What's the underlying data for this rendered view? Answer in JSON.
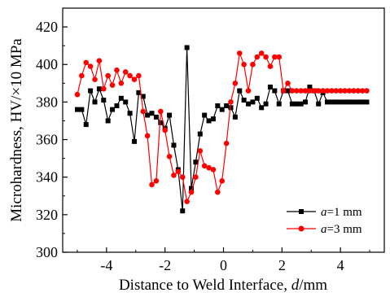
{
  "chart_data": {
    "type": "line",
    "xlabel": "Distance to Weld Interface, d/mm",
    "ylabel": "Microhardness, HV/×10 MPa",
    "xlim": [
      -5.5,
      5.5
    ],
    "ylim": [
      300,
      430
    ],
    "xticks": [
      -4,
      -2,
      0,
      2,
      4
    ],
    "yticks": [
      300,
      320,
      340,
      360,
      380,
      400,
      420
    ],
    "x_tick_labels": [
      "-4",
      "-2",
      "0",
      "2",
      "4"
    ],
    "y_tick_labels": [
      "300",
      "320",
      "340",
      "360",
      "380",
      "400",
      "420"
    ],
    "grid": false,
    "legend": "bottom-right",
    "series": [
      {
        "name": "a=1 mm",
        "name_italic": "a",
        "name_rest": "=1 mm",
        "color": "#000000",
        "marker": "square",
        "x": [
          -5.0,
          -4.85,
          -4.7,
          -4.55,
          -4.4,
          -4.25,
          -4.1,
          -3.95,
          -3.8,
          -3.65,
          -3.5,
          -3.35,
          -3.2,
          -3.05,
          -2.9,
          -2.75,
          -2.6,
          -2.45,
          -2.3,
          -2.15,
          -2.0,
          -1.85,
          -1.7,
          -1.55,
          -1.4,
          -1.25,
          -1.1,
          -0.95,
          -0.8,
          -0.65,
          -0.5,
          -0.35,
          -0.2,
          -0.05,
          0.1,
          0.25,
          0.4,
          0.55,
          0.7,
          0.85,
          1.0,
          1.15,
          1.3,
          1.45,
          1.6,
          1.75,
          1.9,
          2.05,
          2.2,
          2.35,
          2.5,
          2.65,
          2.8,
          2.95,
          3.1,
          3.25,
          3.4,
          3.55,
          3.7,
          3.85,
          4.0,
          4.15,
          4.3,
          4.45,
          4.6,
          4.75,
          4.9
        ],
        "y": [
          376,
          376,
          368,
          386,
          380,
          387,
          381,
          370,
          376,
          378,
          382,
          380,
          374,
          359,
          385,
          383,
          373,
          374,
          372,
          369,
          366,
          373,
          357,
          344,
          322,
          409,
          334,
          348,
          363,
          373,
          370,
          371,
          378,
          376,
          378,
          377,
          372,
          386,
          381,
          379,
          380,
          382,
          377,
          379,
          388,
          386,
          379,
          386,
          386,
          379,
          379,
          379,
          380,
          388,
          386,
          379,
          385,
          380,
          380,
          380,
          380,
          380,
          380,
          380,
          380,
          380,
          380
        ]
      },
      {
        "name": "a=3 mm",
        "name_italic": "a",
        "name_rest": "=3 mm",
        "color": "#ff0000",
        "marker": "circle",
        "x": [
          -5.0,
          -4.85,
          -4.7,
          -4.55,
          -4.4,
          -4.25,
          -4.1,
          -3.95,
          -3.8,
          -3.65,
          -3.5,
          -3.35,
          -3.2,
          -3.05,
          -2.9,
          -2.75,
          -2.6,
          -2.45,
          -2.3,
          -2.15,
          -2.0,
          -1.85,
          -1.7,
          -1.55,
          -1.4,
          -1.25,
          -1.1,
          -0.95,
          -0.8,
          -0.65,
          -0.5,
          -0.35,
          -0.2,
          -0.05,
          0.1,
          0.25,
          0.4,
          0.55,
          0.7,
          0.85,
          1.0,
          1.15,
          1.3,
          1.45,
          1.6,
          1.75,
          1.9,
          2.05,
          2.2,
          2.35,
          2.5,
          2.65,
          2.8,
          2.95,
          3.1,
          3.25,
          3.4,
          3.55,
          3.7,
          3.85,
          4.0,
          4.15,
          4.3,
          4.45,
          4.6,
          4.75,
          4.9
        ],
        "y": [
          384,
          394,
          401,
          399,
          392,
          402,
          387,
          394,
          389,
          397,
          390,
          396,
          394,
          392,
          394,
          375,
          362,
          336,
          338,
          375,
          365,
          351,
          341,
          343,
          340,
          327,
          332,
          340,
          354,
          346,
          345,
          344,
          332,
          338,
          358,
          380,
          390,
          406,
          400,
          386,
          400,
          404,
          406,
          404,
          399,
          404,
          404,
          386,
          390,
          386,
          386,
          386,
          386,
          386,
          386,
          386,
          386,
          386,
          386,
          386,
          386,
          386,
          386,
          386,
          386,
          386,
          386
        ]
      }
    ]
  }
}
